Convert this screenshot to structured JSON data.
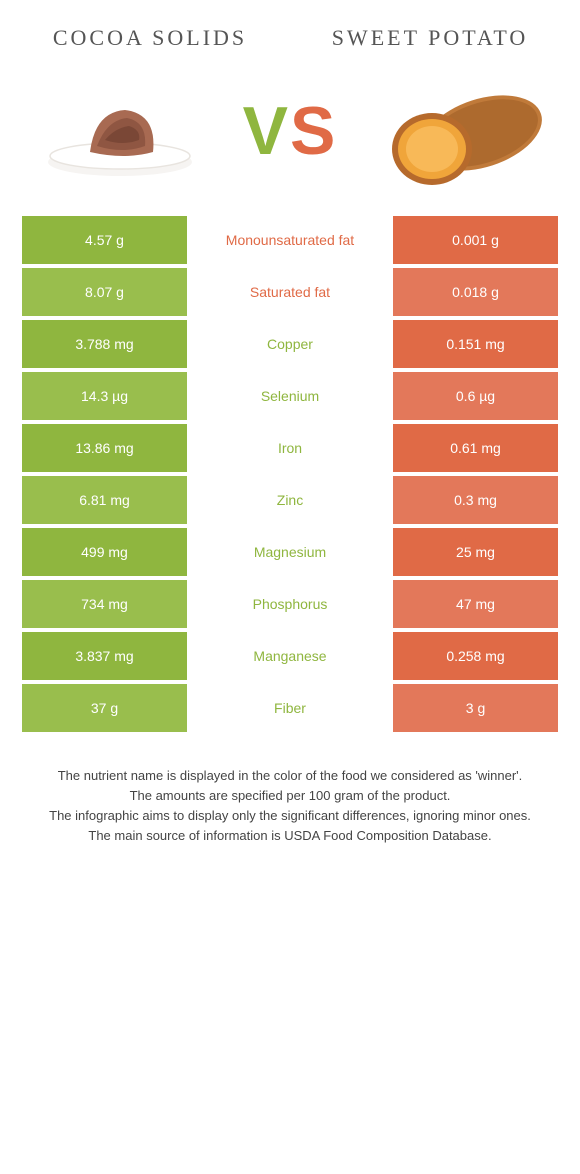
{
  "titles": {
    "left": "COCOA SOLIDS",
    "right": "SWEET POTATO"
  },
  "vs": {
    "v": "V",
    "s": "S"
  },
  "colors": {
    "left_primary": "#8fb63f",
    "left_alt": "#99be4d",
    "right_primary": "#e06a46",
    "right_alt": "#e3785a",
    "nutrient_left": "#e06a46",
    "nutrient_right": "#8fb63f"
  },
  "rows": [
    {
      "left": "4.57 g",
      "label": "Monounsaturated fat",
      "right": "0.001 g",
      "winner": "left"
    },
    {
      "left": "8.07 g",
      "label": "Saturated fat",
      "right": "0.018 g",
      "winner": "left"
    },
    {
      "left": "3.788 mg",
      "label": "Copper",
      "right": "0.151 mg",
      "winner": "right"
    },
    {
      "left": "14.3 µg",
      "label": "Selenium",
      "right": "0.6 µg",
      "winner": "right"
    },
    {
      "left": "13.86 mg",
      "label": "Iron",
      "right": "0.61 mg",
      "winner": "right"
    },
    {
      "left": "6.81 mg",
      "label": "Zinc",
      "right": "0.3 mg",
      "winner": "right"
    },
    {
      "left": "499 mg",
      "label": "Magnesium",
      "right": "25 mg",
      "winner": "right"
    },
    {
      "left": "734 mg",
      "label": "Phosphorus",
      "right": "47 mg",
      "winner": "right"
    },
    {
      "left": "3.837 mg",
      "label": "Manganese",
      "right": "0.258 mg",
      "winner": "right"
    },
    {
      "left": "37 g",
      "label": "Fiber",
      "right": "3 g",
      "winner": "right"
    }
  ],
  "footer": [
    "The nutrient name is displayed in the color of the food we considered as 'winner'.",
    "The amounts are specified per 100 gram of the product.",
    "The infographic aims to display only the significant differences, ignoring minor ones.",
    "The main source of information is USDA Food Composition Database."
  ]
}
